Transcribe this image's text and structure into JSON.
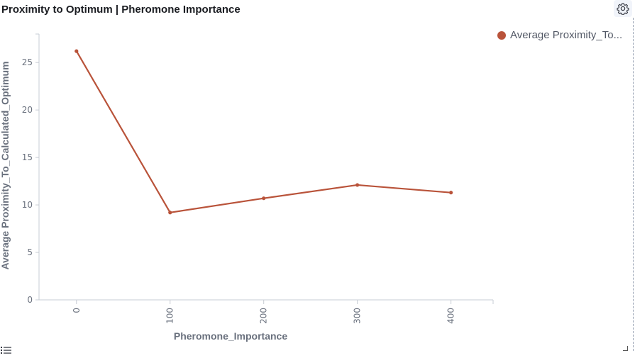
{
  "panel": {
    "title": "Proximity to Optimum | Pheromone Importance",
    "settings_icon": "gear-icon",
    "list_icon": "list-icon"
  },
  "legend": {
    "label": "Average Proximity_To..."
  },
  "colors": {
    "series": "#b9533a"
  },
  "chart_data": {
    "type": "line",
    "title": "Proximity to Optimum | Pheromone Importance",
    "xlabel": "Pheromone_Importance",
    "ylabel": "Average Proximity_To_Calculated_Optimum",
    "x": [
      0,
      100,
      200,
      300,
      400
    ],
    "x_ticks": [
      "0",
      "100",
      "200",
      "300",
      "400"
    ],
    "y_ticks": [
      "0",
      "5",
      "10",
      "15",
      "20",
      "25"
    ],
    "xlim": [
      -40,
      445
    ],
    "ylim": [
      0,
      28
    ],
    "grid": false,
    "legend_position": "top-right",
    "series": [
      {
        "name": "Average Proximity_To...",
        "values": [
          26.2,
          9.2,
          10.7,
          12.1,
          11.3
        ]
      }
    ]
  }
}
